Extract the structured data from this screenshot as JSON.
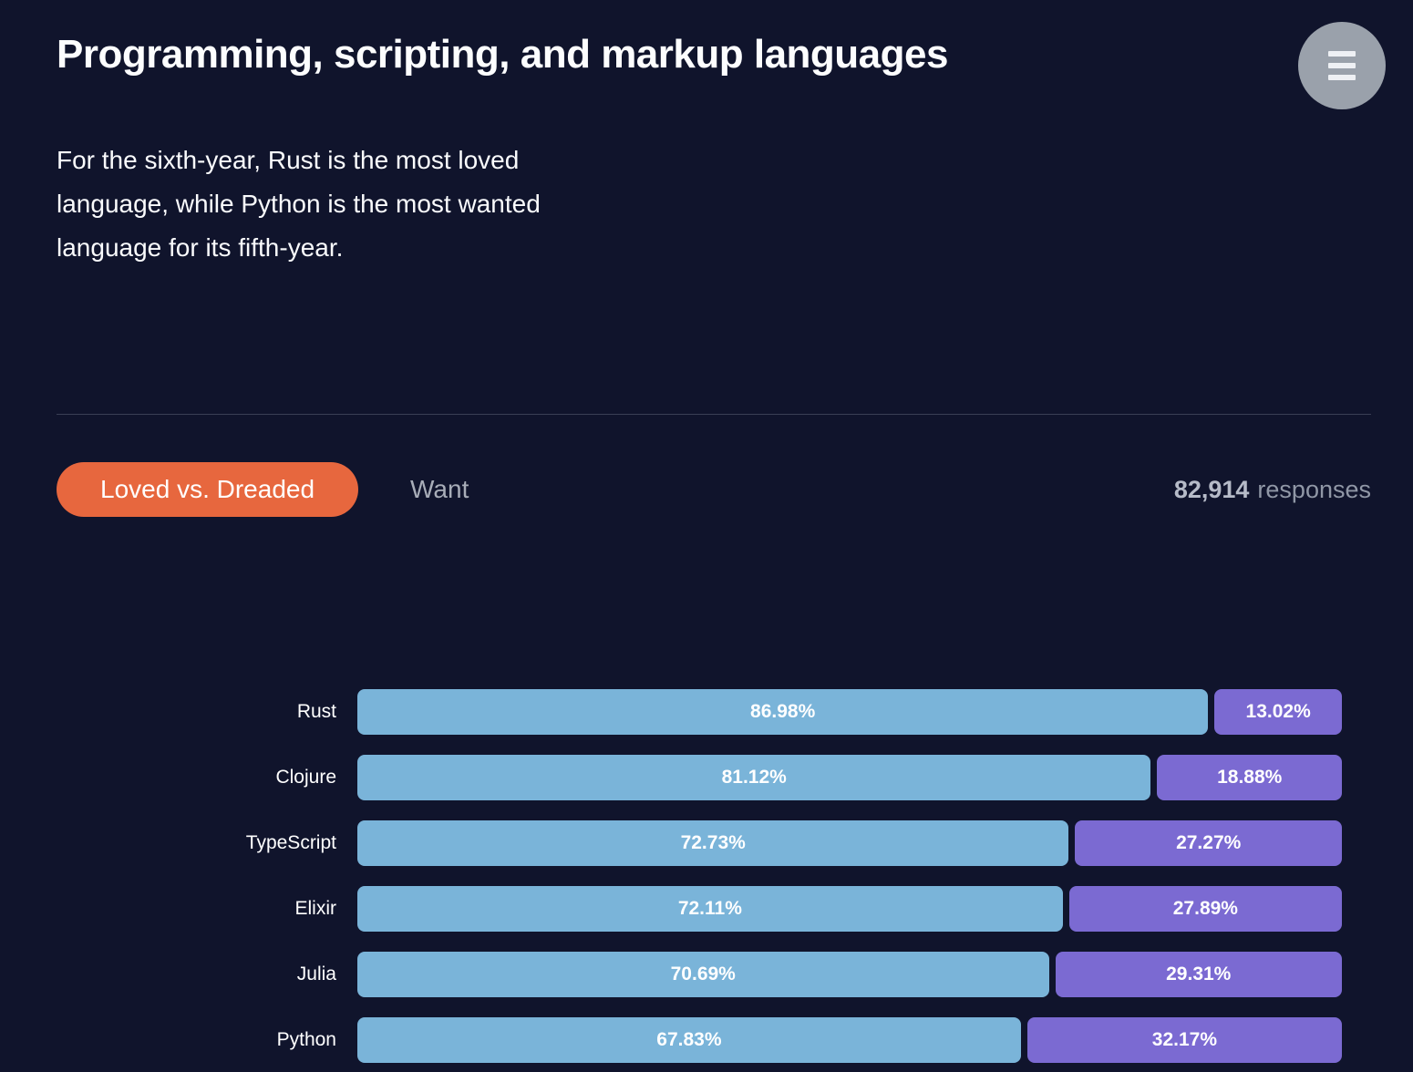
{
  "header": {
    "title": "Programming, scripting, and markup languages",
    "subtitle": "For the sixth-year, Rust is the most loved language, while Python is the most wanted language for its fifth-year.",
    "menu_icon": "hamburger-icon"
  },
  "tab_bar": {
    "tabs": [
      {
        "label": "Loved vs. Dreaded",
        "active": true
      },
      {
        "label": "Want",
        "active": false
      }
    ],
    "responses_value": "82,914",
    "responses_label": "responses"
  },
  "colors": {
    "background": "#10142c",
    "accent_orange": "#e7673e",
    "loved_blue": "#7ab4d9",
    "dreaded_purple": "#7b6ad2",
    "divider": "#3a3f55",
    "muted_text": "#a8adb8",
    "menu_circle": "#9aa1ab"
  },
  "chart_data": {
    "type": "bar",
    "orientation": "horizontal",
    "stacked": true,
    "unit": "%",
    "title": "Loved vs. Dreaded",
    "categories": [
      "Rust",
      "Clojure",
      "TypeScript",
      "Elixir",
      "Julia",
      "Python"
    ],
    "series": [
      {
        "name": "Loved",
        "color": "#7ab4d9",
        "values": [
          86.98,
          81.12,
          72.73,
          72.11,
          70.69,
          67.83
        ],
        "labels": [
          "86.98%",
          "81.12%",
          "72.73%",
          "72.11%",
          "70.69%",
          "67.83%"
        ]
      },
      {
        "name": "Dreaded",
        "color": "#7b6ad2",
        "values": [
          13.02,
          18.88,
          27.27,
          27.89,
          29.31,
          32.17
        ],
        "labels": [
          "13.02%",
          "18.88%",
          "27.27%",
          "27.89%",
          "29.31%",
          "32.17%"
        ]
      }
    ],
    "xlim": [
      0,
      100
    ],
    "axes_visible": false,
    "grid": false,
    "legend_visible": false,
    "value_labels_position": "inside-center"
  }
}
